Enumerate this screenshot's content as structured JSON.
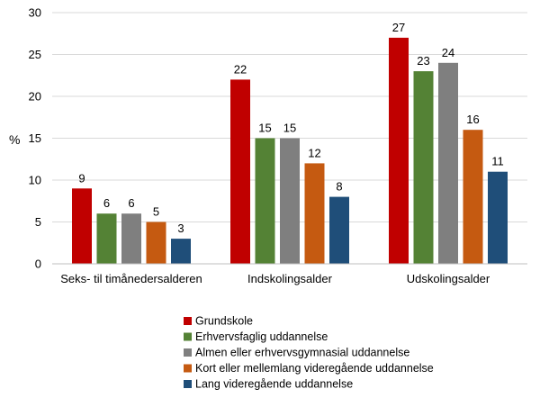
{
  "chart_data": {
    "type": "bar",
    "title": "",
    "xlabel": "",
    "ylabel": "%",
    "ylim": [
      0,
      30
    ],
    "yticks": [
      0,
      5,
      10,
      15,
      20,
      25,
      30
    ],
    "grid": "horizontal",
    "legend_position": "bottom-center",
    "categories": [
      "Seks- til timånedersalderen",
      "Indskolingsalder",
      "Udskolingsalder"
    ],
    "series": [
      {
        "name": "Grundskole",
        "color": "#c00000",
        "values": [
          9,
          22,
          27
        ]
      },
      {
        "name": "Erhvervsfaglig uddannelse",
        "color": "#548235",
        "values": [
          6,
          15,
          23
        ]
      },
      {
        "name": "Almen eller erhvervsgymnasial uddannelse",
        "color": "#7f7f7f",
        "values": [
          6,
          15,
          24
        ]
      },
      {
        "name": "Kort eller mellemlang videregående uddannelse",
        "color": "#c55a11",
        "values": [
          5,
          12,
          16
        ]
      },
      {
        "name": "Lang videregående uddannelse",
        "color": "#1f4e79",
        "values": [
          3,
          8,
          11
        ]
      }
    ]
  }
}
